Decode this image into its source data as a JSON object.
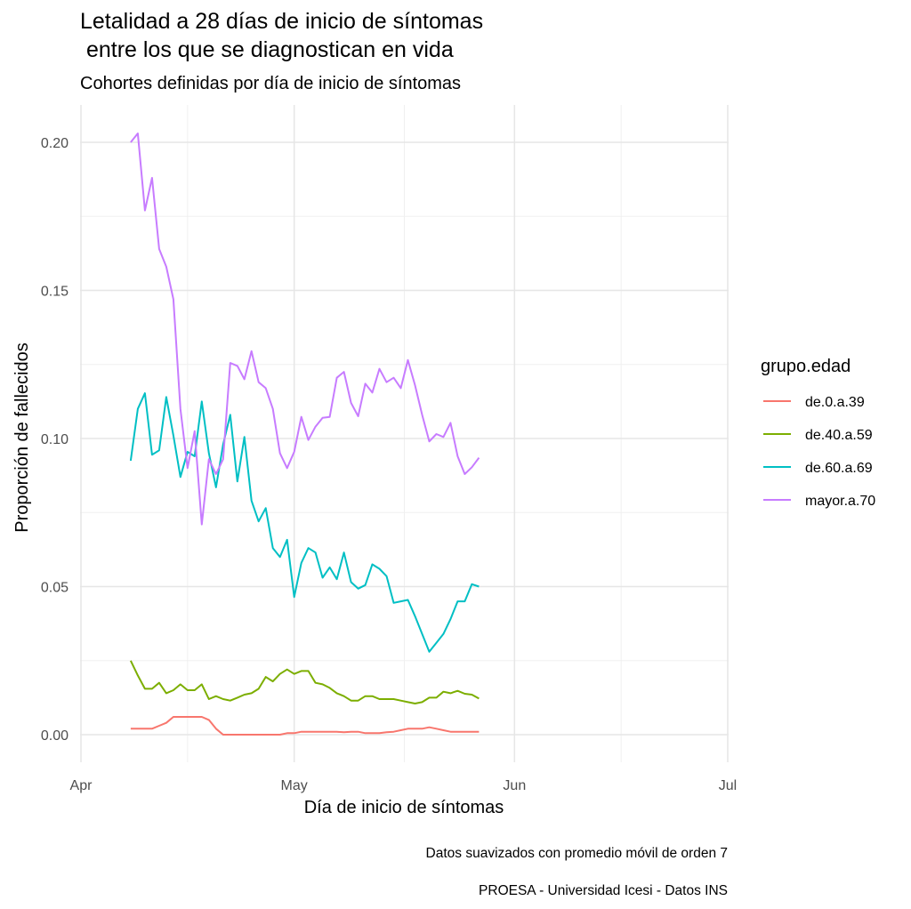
{
  "chart_data": {
    "type": "line",
    "title": "Letalidad a 28 días de inicio de síntomas",
    "title_line2": " entre los que se diagnostican en vida",
    "subtitle": "Cohortes definidas por día de inicio de síntomas",
    "xlabel": "Día de inicio de síntomas",
    "ylabel": "Proporción de fallecidos",
    "caption_1": "Datos suavizados con promedio móvil de orden 7",
    "caption_2": "PROESA - Universidad Icesi - Datos INS",
    "x_start_date": "2020-04-08",
    "x_range_days_from_apr1": [
      0,
      91
    ],
    "ylim": [
      -0.009,
      0.213
    ],
    "x_ticks": [
      {
        "label": "Apr",
        "day": 0
      },
      {
        "label": "May",
        "day": 30
      },
      {
        "label": "Jun",
        "day": 61
      },
      {
        "label": "Jul",
        "day": 91
      }
    ],
    "y_ticks": [
      {
        "label": "0.00",
        "value": 0
      },
      {
        "label": "0.05",
        "value": 0.05
      },
      {
        "label": "0.10",
        "value": 0.1
      },
      {
        "label": "0.15",
        "value": 0.15
      },
      {
        "label": "0.20",
        "value": 0.2
      }
    ],
    "grid": true,
    "legend": {
      "title": "grupo.edad",
      "placement": "right"
    },
    "series": [
      {
        "name": "de.0.a.39",
        "color": "#F8766D",
        "values": [
          0.002,
          0.002,
          0.002,
          0.002,
          0.003,
          0.004,
          0.006,
          0.006,
          0.006,
          0.006,
          0.006,
          0.005,
          0.002,
          0,
          0,
          0,
          0,
          0,
          0,
          0,
          0,
          0,
          0.0005,
          0.0005,
          0.001,
          0.001,
          0.001,
          0.001,
          0.001,
          0.001,
          0.0008,
          0.001,
          0.001,
          0.0005,
          0.0005,
          0.0005,
          0.0008,
          0.001,
          0.0015,
          0.002,
          0.002,
          0.002,
          0.0025,
          0.002,
          0.0015,
          0.001,
          0.001,
          0.001,
          0.001,
          0.001
        ]
      },
      {
        "name": "de.40.a.59",
        "color": "#7CAE00",
        "values": [
          0.025,
          0.02,
          0.0155,
          0.0155,
          0.0175,
          0.014,
          0.015,
          0.017,
          0.015,
          0.015,
          0.017,
          0.012,
          0.013,
          0.012,
          0.0115,
          0.0125,
          0.0135,
          0.014,
          0.0155,
          0.0195,
          0.018,
          0.0205,
          0.022,
          0.0205,
          0.0215,
          0.0215,
          0.0175,
          0.017,
          0.0158,
          0.014,
          0.013,
          0.0115,
          0.0115,
          0.013,
          0.013,
          0.012,
          0.012,
          0.012,
          0.0115,
          0.011,
          0.0105,
          0.011,
          0.0125,
          0.0125,
          0.0145,
          0.014,
          0.0148,
          0.0138,
          0.0135,
          0.0122
        ]
      },
      {
        "name": "de.60.a.69",
        "color": "#00BFC4",
        "values": [
          0.0925,
          0.11,
          0.1153,
          0.0945,
          0.096,
          0.114,
          0.101,
          0.087,
          0.0955,
          0.094,
          0.1125,
          0.095,
          0.0835,
          0.098,
          0.108,
          0.0855,
          0.1005,
          0.079,
          0.072,
          0.0765,
          0.063,
          0.06,
          0.0658,
          0.0465,
          0.058,
          0.063,
          0.0615,
          0.053,
          0.0565,
          0.0525,
          0.0615,
          0.0515,
          0.0493,
          0.0505,
          0.0575,
          0.056,
          0.0535,
          0.0445,
          0.045,
          0.0455,
          0.04,
          0.034,
          0.028,
          0.031,
          0.034,
          0.039,
          0.045,
          0.045,
          0.0508,
          0.05
        ]
      },
      {
        "name": "mayor.a.70",
        "color": "#C77CFF",
        "values": [
          0.2,
          0.203,
          0.177,
          0.188,
          0.164,
          0.158,
          0.147,
          0.11,
          0.09,
          0.1025,
          0.071,
          0.093,
          0.088,
          0.093,
          0.1255,
          0.1245,
          0.12,
          0.1295,
          0.119,
          0.117,
          0.11,
          0.095,
          0.09,
          0.0955,
          0.1073,
          0.0995,
          0.104,
          0.107,
          0.1073,
          0.1205,
          0.1225,
          0.112,
          0.1075,
          0.1185,
          0.1155,
          0.1235,
          0.119,
          0.1205,
          0.117,
          0.1265,
          0.118,
          0.108,
          0.099,
          0.1015,
          0.1005,
          0.1053,
          0.094,
          0.088,
          0.0903,
          0.0935
        ]
      }
    ]
  }
}
